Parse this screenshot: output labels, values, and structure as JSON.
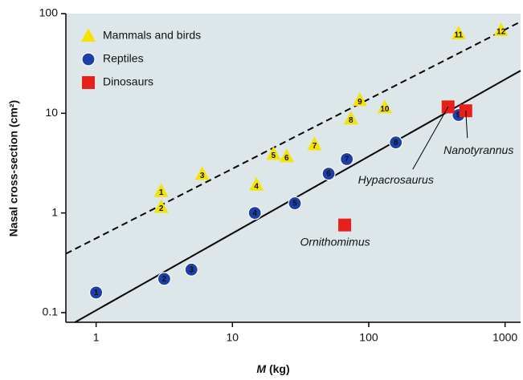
{
  "chart_data": {
    "type": "scatter",
    "xlabel_symbol": "M",
    "xlabel_unit": "(kg)",
    "ylabel": "Nasal cross-section (cm²)",
    "log_x": true,
    "log_y": true,
    "xlim": [
      0.6,
      1300
    ],
    "ylim": [
      0.08,
      100
    ],
    "xticks": [
      1,
      10,
      100,
      1000
    ],
    "yticks": [
      0.1,
      1,
      10,
      100
    ],
    "legend": "upper left",
    "series": [
      {
        "name": "Mammals and birds",
        "color": "#f5e400",
        "marker": "triangle",
        "labels": [
          "1",
          "2",
          "3",
          "4",
          "5",
          "6",
          "7",
          "8",
          "9",
          "10",
          "11",
          "12"
        ],
        "x": [
          3,
          3,
          6,
          15,
          20,
          25,
          40,
          74,
          86,
          131,
          456,
          935
        ],
        "values": [
          1.65,
          1.14,
          2.44,
          1.91,
          3.88,
          3.67,
          4.85,
          8.8,
          13.5,
          11.4,
          62.9,
          67.7
        ]
      },
      {
        "name": "Reptiles",
        "color": "#1d3fa6",
        "marker": "circle",
        "labels": [
          "1",
          "2",
          "3",
          "4",
          "5",
          "6",
          "7",
          "8",
          "9"
        ],
        "x": [
          1,
          3.16,
          5,
          14.6,
          28.7,
          50.8,
          69,
          158,
          456
        ],
        "values": [
          0.159,
          0.218,
          0.27,
          1.0,
          1.25,
          2.48,
          3.47,
          5.1,
          9.6
        ]
      },
      {
        "name": "Dinosaurs",
        "color": "#e8201c",
        "marker": "square",
        "labels": [
          "Ornithomimus",
          "Hypacrosaurus",
          "Nanotyrannus"
        ],
        "x": [
          66.6,
          382,
          515
        ],
        "values": [
          0.757,
          11.6,
          10.6
        ]
      }
    ],
    "fit_lines": [
      {
        "style": "dashed",
        "x": [
          0.6,
          1300
        ],
        "values": [
          0.39,
          83
        ]
      },
      {
        "style": "solid",
        "x": [
          0.7,
          1300
        ],
        "values": [
          0.08,
          26.8
        ]
      }
    ]
  }
}
